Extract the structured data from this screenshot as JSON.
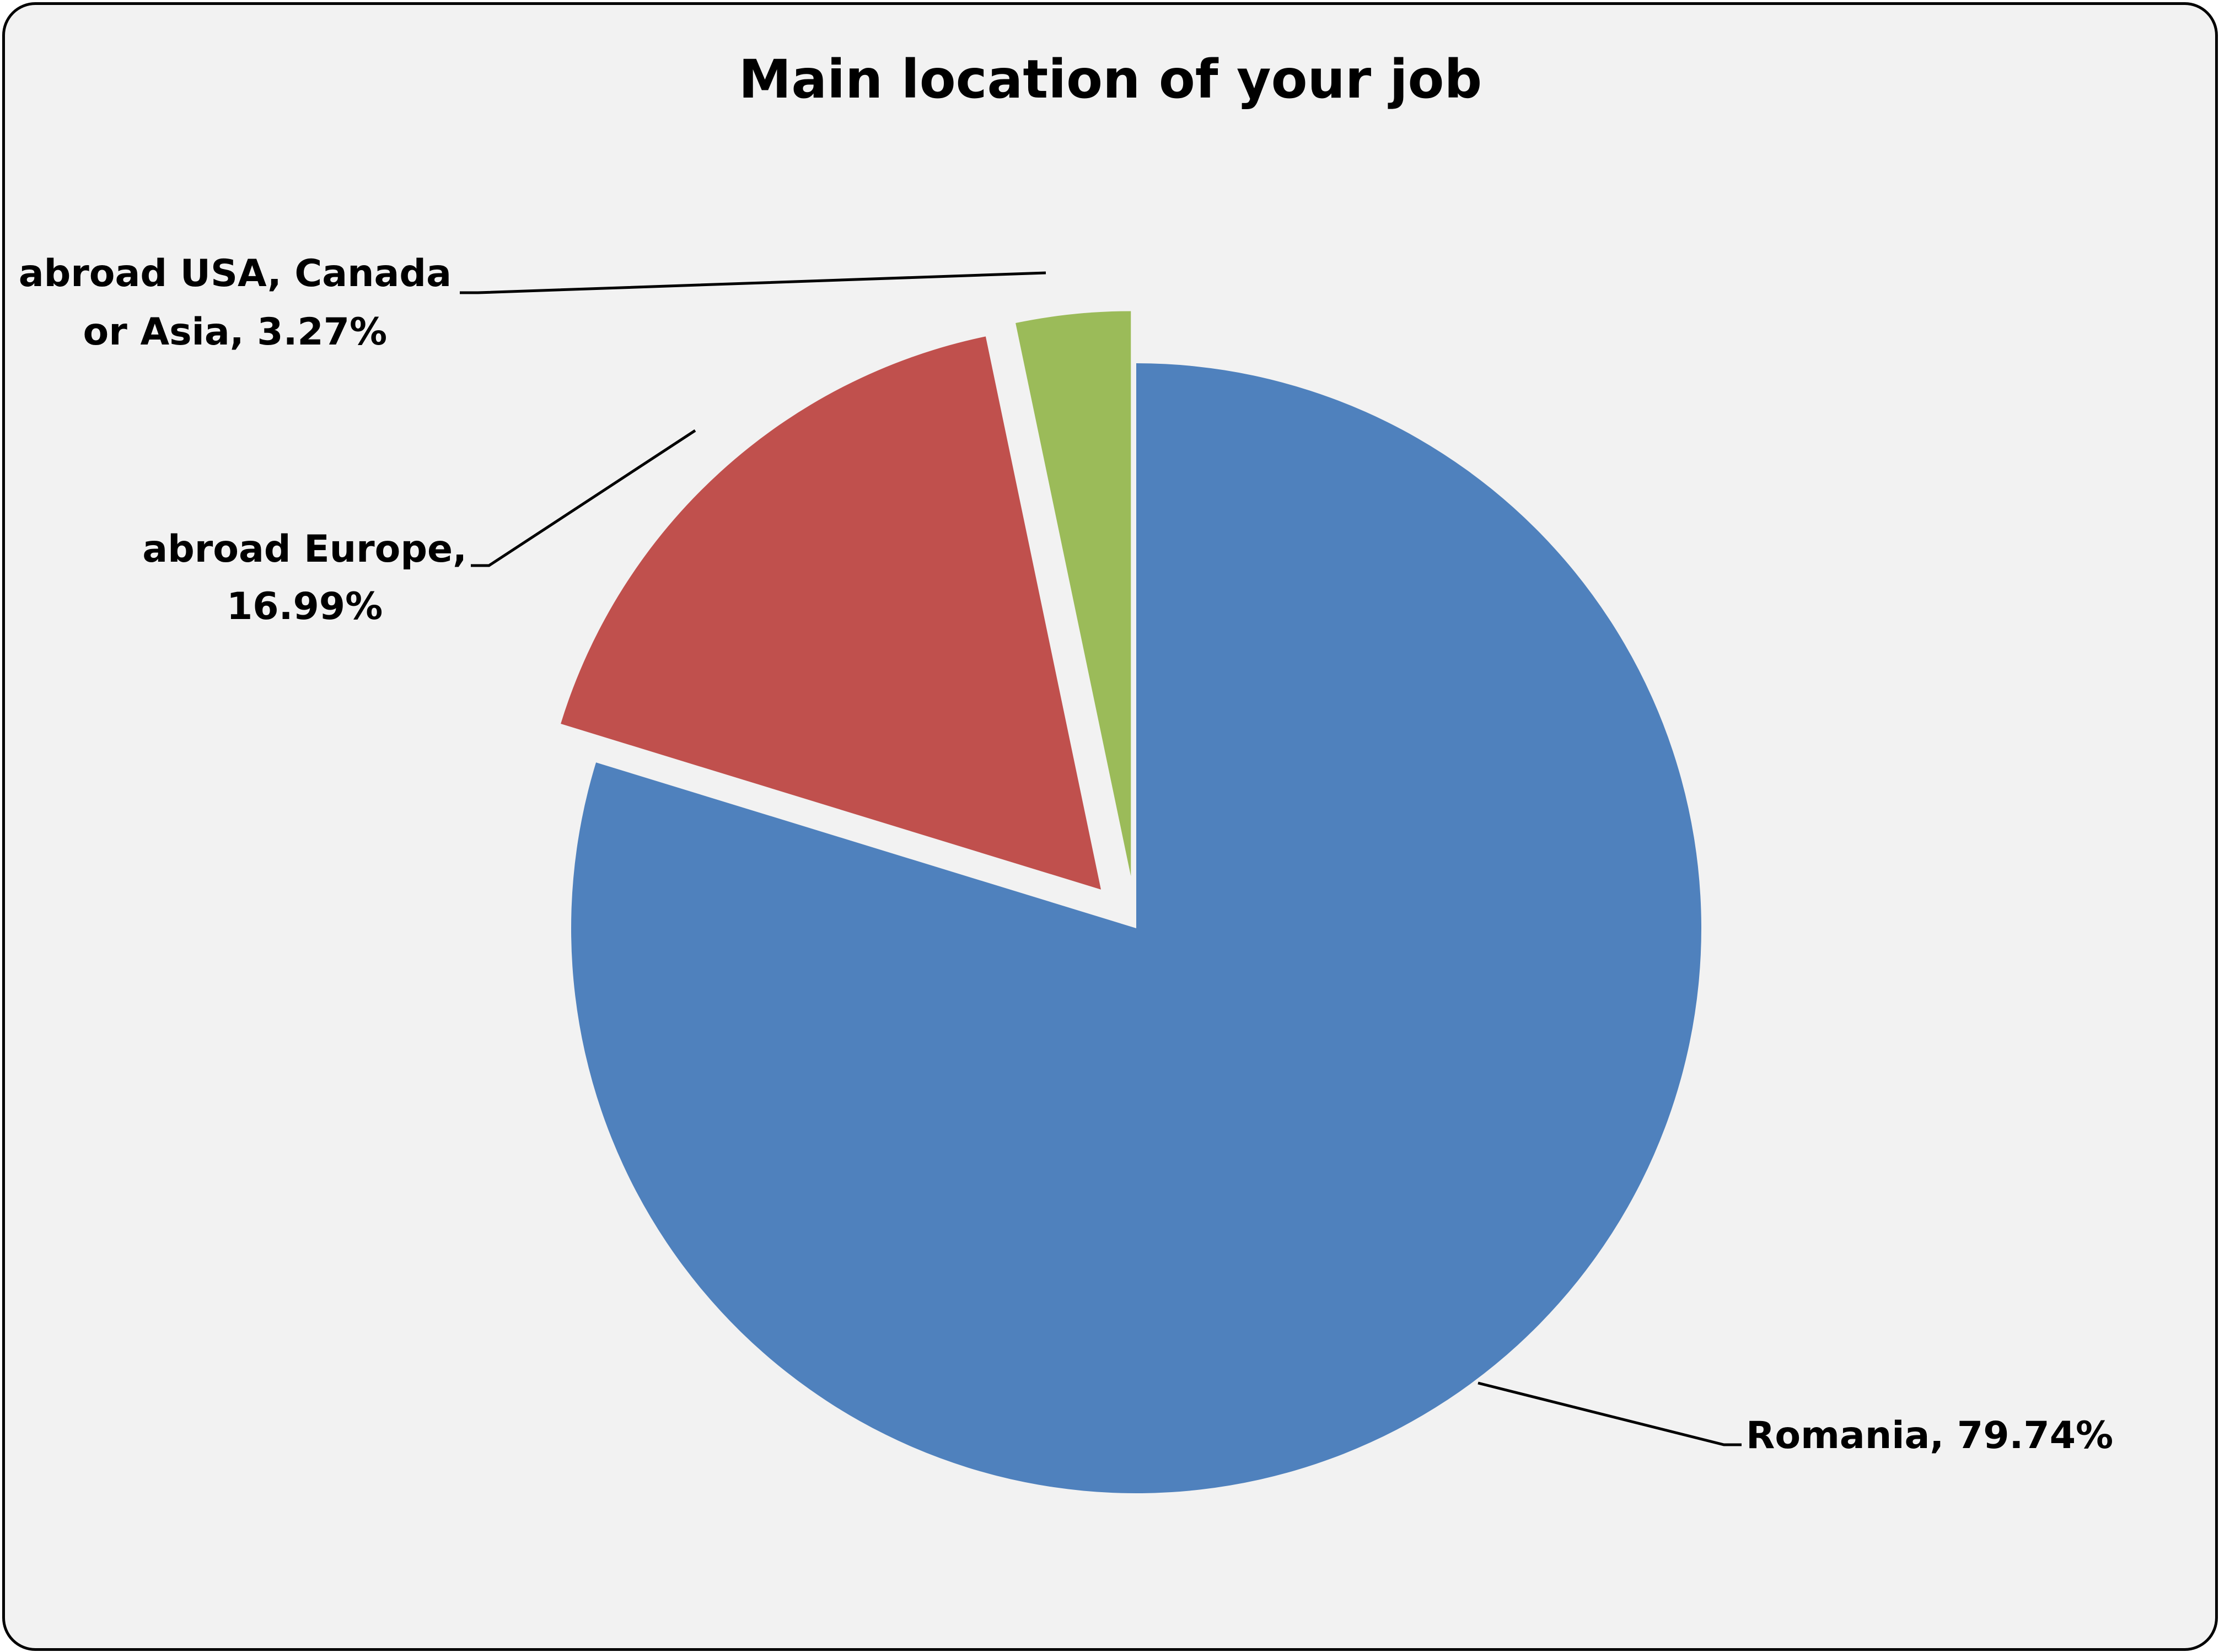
{
  "chart_data": {
    "type": "pie",
    "title": "Main location of your job",
    "slices": [
      {
        "name": "Romania",
        "value": 79.74,
        "label": "Romania, 79.74%",
        "color": "#4f81bd",
        "exploded": false
      },
      {
        "name": "abroad Europe",
        "value": 16.99,
        "label_lines": [
          "abroad Europe,",
          "16.99%"
        ],
        "color": "#c0504d",
        "exploded": true
      },
      {
        "name": "abroad USA, Canada or Asia",
        "value": 3.27,
        "label_lines": [
          "abroad USA, Canada",
          "or Asia, 3.27%"
        ],
        "color": "#9bbb59",
        "exploded": true
      }
    ],
    "start_angle": "12 o'clock",
    "direction": "clockwise",
    "legend": "none",
    "background": "#f2f2f2"
  }
}
